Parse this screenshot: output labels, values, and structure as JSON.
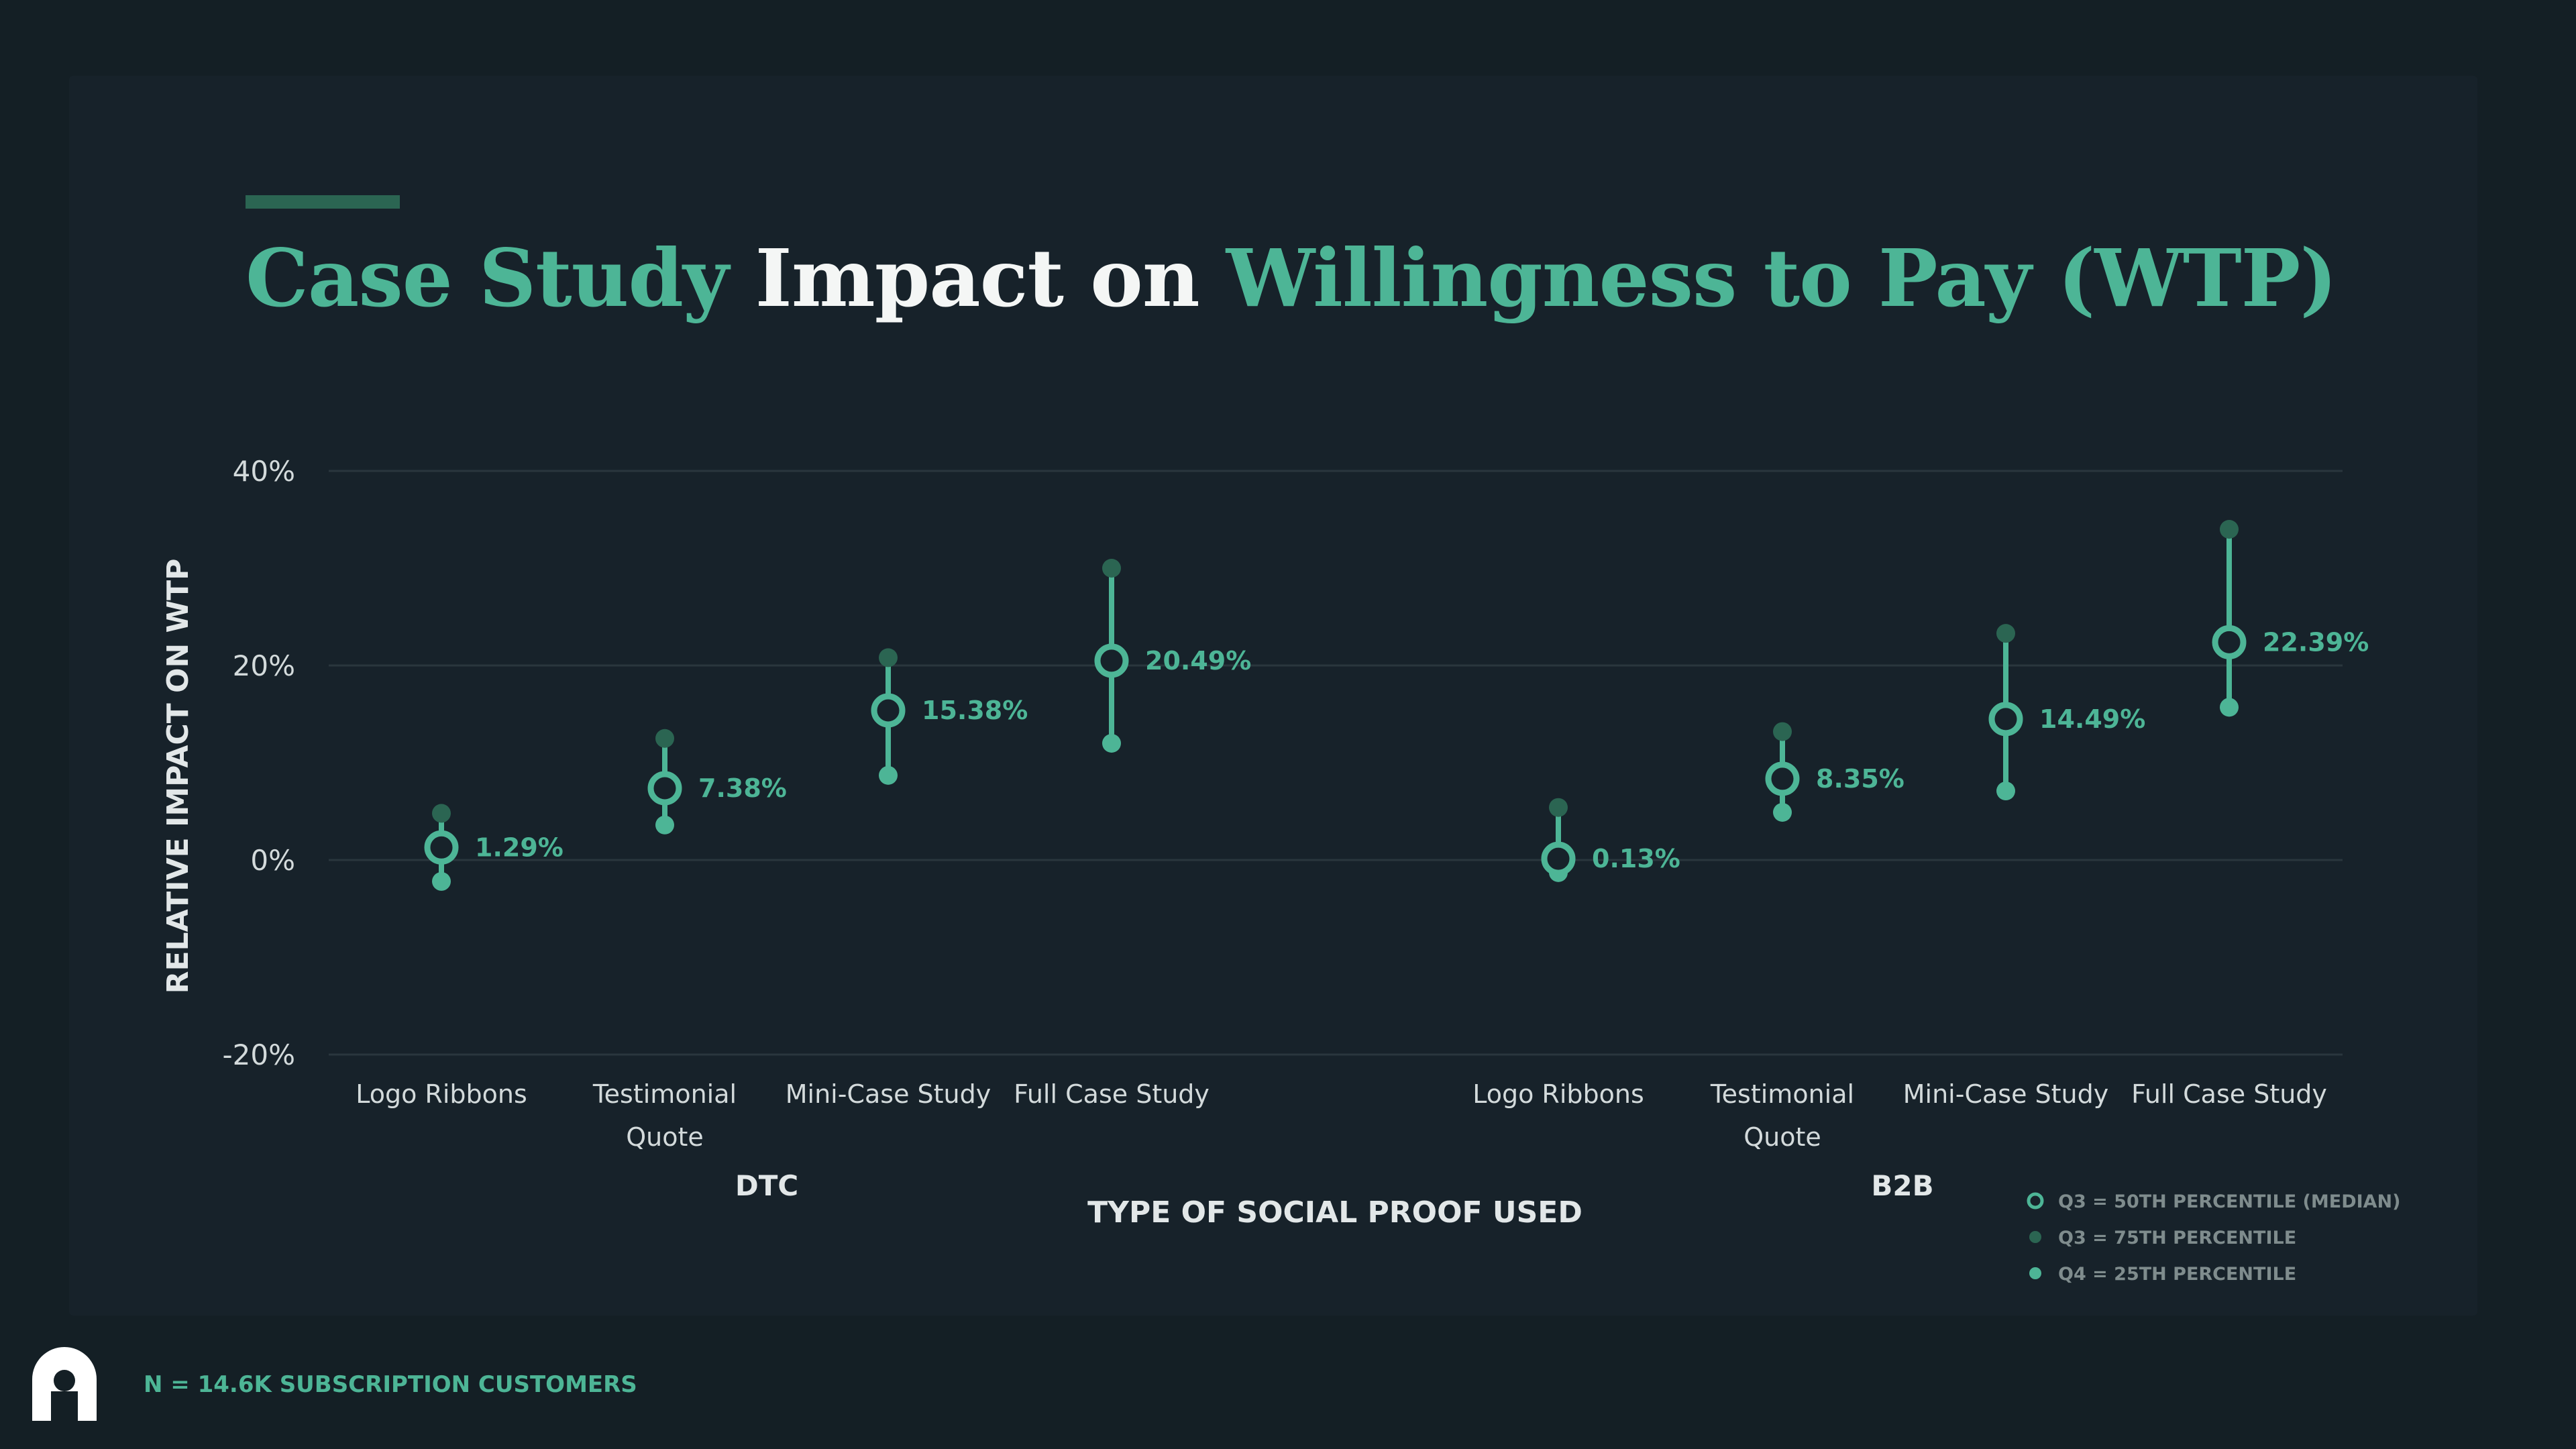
{
  "title": {
    "part1": "Case Study",
    "part2": "Impact on",
    "part3": "Willingness to Pay (WTP)"
  },
  "colors": {
    "accent": "#4db596",
    "dark_green": "#2b6552",
    "background": "#141f25",
    "card": "#17222a"
  },
  "footer": {
    "note": "N = 14.6K SUBSCRIPTION CUSTOMERS",
    "logo_icon": "brand-logo-icon"
  },
  "chart_data": {
    "type": "range-dot",
    "ylabel": "RELATIVE IMPACT ON WTP",
    "xlabel": "TYPE OF SOCIAL PROOF USED",
    "ylim": [
      -20,
      40
    ],
    "yticks": [
      40,
      20,
      0,
      -20
    ],
    "ytick_labels": [
      "40%",
      "20%",
      "0%",
      "-20%"
    ],
    "grid": true,
    "legend_position": "bottom-right",
    "legend": [
      {
        "marker": "ring",
        "label": "Q3 = 50TH PERCENTILE (MEDIAN)"
      },
      {
        "marker": "dark-dot",
        "label": "Q3 = 75TH PERCENTILE"
      },
      {
        "marker": "light-dot",
        "label": "Q4 = 25TH PERCENTILE"
      }
    ],
    "groups": [
      {
        "name": "DTC",
        "categories": [
          {
            "label_lines": [
              "Logo Ribbons"
            ],
            "median": 1.29,
            "median_label": "1.29%",
            "p75": 4.8,
            "p25": -2.2
          },
          {
            "label_lines": [
              "Testimonial",
              "Quote"
            ],
            "median": 7.38,
            "median_label": "7.38%",
            "p75": 12.5,
            "p25": 3.6
          },
          {
            "label_lines": [
              "Mini-Case Study"
            ],
            "median": 15.38,
            "median_label": "15.38%",
            "p75": 20.8,
            "p25": 8.7
          },
          {
            "label_lines": [
              "Full Case Study"
            ],
            "median": 20.49,
            "median_label": "20.49%",
            "p75": 30.0,
            "p25": 12.0
          }
        ]
      },
      {
        "name": "B2B",
        "categories": [
          {
            "label_lines": [
              "Logo Ribbons"
            ],
            "median": 0.13,
            "median_label": "0.13%",
            "p75": 5.4,
            "p25": -1.3
          },
          {
            "label_lines": [
              "Testimonial",
              "Quote"
            ],
            "median": 8.35,
            "median_label": "8.35%",
            "p75": 13.2,
            "p25": 4.9
          },
          {
            "label_lines": [
              "Mini-Case Study"
            ],
            "median": 14.49,
            "median_label": "14.49%",
            "p75": 23.3,
            "p25": 7.1
          },
          {
            "label_lines": [
              "Full Case Study"
            ],
            "median": 22.39,
            "median_label": "22.39%",
            "p75": 34.0,
            "p25": 15.7
          }
        ]
      }
    ]
  }
}
